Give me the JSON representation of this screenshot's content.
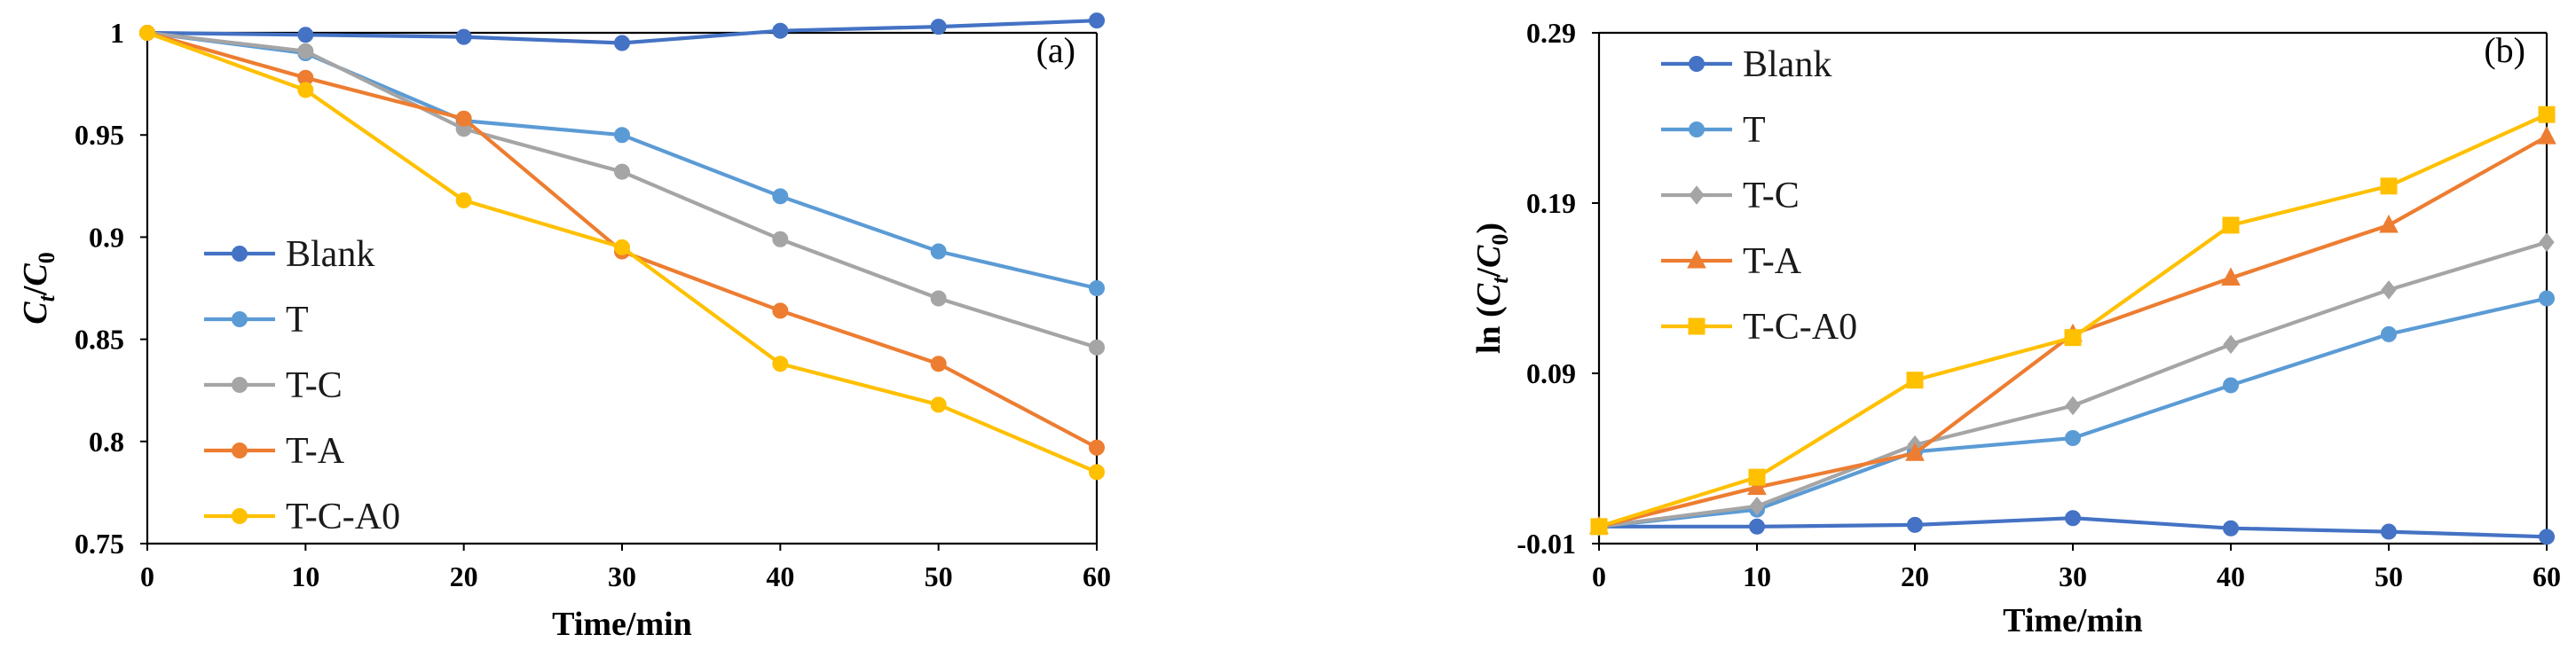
{
  "chart_data": [
    {
      "type": "line",
      "panel_label": "(a)",
      "xlabel": "Time/min",
      "ylabel_main": "C",
      "ylabel_sub1": "t",
      "ylabel_slash": "/",
      "ylabel_main2": "C",
      "ylabel_sub2": "0",
      "x": [
        0,
        10,
        20,
        30,
        40,
        50,
        60
      ],
      "xlim": [
        0,
        60
      ],
      "ylim": [
        0.75,
        1.0
      ],
      "xticks": [
        "0",
        "10",
        "20",
        "30",
        "40",
        "50",
        "60"
      ],
      "yticks": [
        {
          "value": 1.0,
          "label": "1"
        },
        {
          "value": 0.95,
          "label": "0.95"
        },
        {
          "value": 0.9,
          "label": "0.9"
        },
        {
          "value": 0.85,
          "label": "0.85"
        },
        {
          "value": 0.8,
          "label": "0.8"
        },
        {
          "value": 0.75,
          "label": "0.75"
        }
      ],
      "legend_position": "left",
      "series": [
        {
          "name": "Blank",
          "color": "#4472C4",
          "marker": "circle",
          "values": [
            1.0,
            0.999,
            0.998,
            0.995,
            1.001,
            1.003,
            1.006
          ]
        },
        {
          "name": "T",
          "color": "#5B9BD5",
          "marker": "circle",
          "values": [
            1.0,
            0.99,
            0.957,
            0.95,
            0.92,
            0.893,
            0.875
          ]
        },
        {
          "name": "T-C",
          "color": "#A5A5A5",
          "marker": "circle",
          "values": [
            1.0,
            0.991,
            0.953,
            0.932,
            0.899,
            0.87,
            0.846
          ]
        },
        {
          "name": "T-A",
          "color": "#ED7D31",
          "marker": "circle",
          "values": [
            1.0,
            0.978,
            0.958,
            0.893,
            0.864,
            0.838,
            0.797
          ]
        },
        {
          "name": "T-C-A0",
          "color": "#FFC000",
          "marker": "circle",
          "values": [
            1.0,
            0.972,
            0.918,
            0.895,
            0.838,
            0.818,
            0.785
          ]
        }
      ]
    },
    {
      "type": "line",
      "panel_label": "(b)",
      "xlabel": "Time/min",
      "ylabel_prefix": "ln (",
      "ylabel_main": "C",
      "ylabel_sub1": "t",
      "ylabel_slash": "/",
      "ylabel_main2": "C",
      "ylabel_sub2": "0",
      "ylabel_suffix": ")",
      "x": [
        0,
        10,
        20,
        30,
        40,
        50,
        60
      ],
      "xlim": [
        0,
        60
      ],
      "ylim": [
        -0.01,
        0.29
      ],
      "xticks": [
        "0",
        "10",
        "20",
        "30",
        "40",
        "50",
        "60"
      ],
      "yticks": [
        {
          "value": 0.29,
          "label": "0.29"
        },
        {
          "value": 0.19,
          "label": "0.19"
        },
        {
          "value": 0.09,
          "label": "0.09"
        },
        {
          "value": -0.01,
          "label": "-0.01"
        }
      ],
      "legend_position": "top-left",
      "series": [
        {
          "name": "Blank",
          "color": "#4472C4",
          "marker": "circle",
          "values": [
            0.0,
            0.0,
            0.001,
            0.005,
            -0.001,
            -0.003,
            -0.006
          ]
        },
        {
          "name": "T",
          "color": "#5B9BD5",
          "marker": "circle",
          "values": [
            0.0,
            0.01,
            0.044,
            0.052,
            0.083,
            0.113,
            0.134
          ]
        },
        {
          "name": "T-C",
          "color": "#A5A5A5",
          "marker": "diamond",
          "values": [
            0.0,
            0.012,
            0.048,
            0.071,
            0.107,
            0.139,
            0.167
          ]
        },
        {
          "name": "T-A",
          "color": "#ED7D31",
          "marker": "triangle",
          "values": [
            0.0,
            0.023,
            0.043,
            0.113,
            0.146,
            0.177,
            0.229
          ]
        },
        {
          "name": "T-C-A0",
          "color": "#FFC000",
          "marker": "square",
          "values": [
            0.0,
            0.029,
            0.086,
            0.111,
            0.177,
            0.2,
            0.242
          ]
        }
      ]
    }
  ]
}
